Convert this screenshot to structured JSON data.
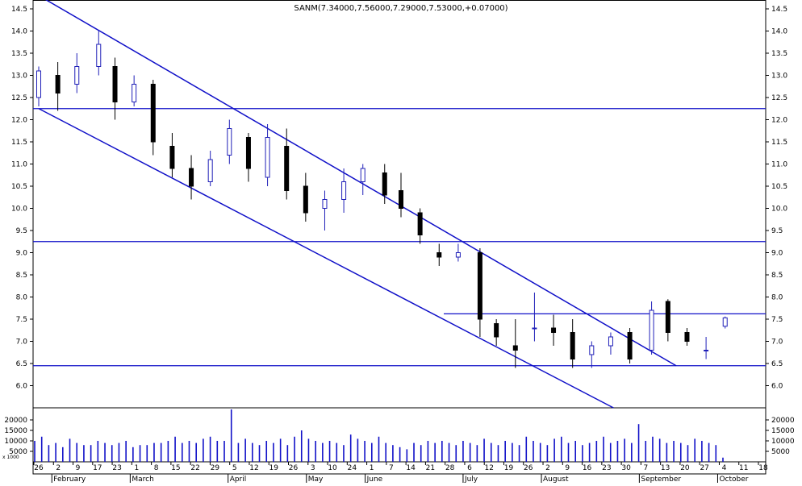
{
  "colors": {
    "up_candle": "#1f1fb8",
    "down_candle": "#000000",
    "trend_line": "#1010c8",
    "volume_bar": "#1010c8",
    "frame": "#000000"
  },
  "chart_data": [
    {
      "type": "candlestick",
      "title": "SANM(7.34000,7.56000,7.29000,7.53000,+0.07000)",
      "ylim": [
        5.5,
        14.7
      ],
      "y_ticks": [
        "14.5",
        "14.0",
        "13.5",
        "13.0",
        "12.5",
        "12.0",
        "11.5",
        "11.0",
        "10.5",
        "10.0",
        "9.5",
        "9.0",
        "8.5",
        "8.0",
        "7.5",
        "7.0",
        "6.5",
        "6.0"
      ],
      "horizontal_levels": [
        12.25,
        9.25,
        7.62,
        6.45
      ],
      "trend_lines": [
        {
          "from": [
            "Jan 26",
            14.8
          ],
          "to": [
            "Sep 16",
            6.45
          ]
        },
        {
          "from": [
            "Jan 26",
            12.25
          ],
          "to": [
            "Aug 24",
            5.5
          ]
        }
      ],
      "candles_estimated": [
        {
          "date": "Jan 26",
          "o": 12.5,
          "h": 13.2,
          "l": 12.3,
          "c": 13.1
        },
        {
          "date": "Feb 2",
          "o": 13.0,
          "h": 13.3,
          "l": 12.2,
          "c": 12.6
        },
        {
          "date": "Feb 9",
          "o": 12.8,
          "h": 13.5,
          "l": 12.6,
          "c": 13.2
        },
        {
          "date": "Feb 17",
          "o": 13.2,
          "h": 14.0,
          "l": 13.0,
          "c": 13.7
        },
        {
          "date": "Feb 23",
          "o": 13.2,
          "h": 13.4,
          "l": 12.0,
          "c": 12.4
        },
        {
          "date": "Mar 1",
          "o": 12.4,
          "h": 13.0,
          "l": 12.3,
          "c": 12.8
        },
        {
          "date": "Mar 8",
          "o": 12.8,
          "h": 12.9,
          "l": 11.2,
          "c": 11.5
        },
        {
          "date": "Mar 15",
          "o": 11.4,
          "h": 11.7,
          "l": 10.7,
          "c": 10.9
        },
        {
          "date": "Mar 22",
          "o": 10.9,
          "h": 11.2,
          "l": 10.2,
          "c": 10.5
        },
        {
          "date": "Mar 29",
          "o": 10.6,
          "h": 11.3,
          "l": 10.5,
          "c": 11.1
        },
        {
          "date": "Apr 5",
          "o": 11.2,
          "h": 12.0,
          "l": 11.0,
          "c": 11.8
        },
        {
          "date": "Apr 12",
          "o": 11.6,
          "h": 11.7,
          "l": 10.6,
          "c": 10.9
        },
        {
          "date": "Apr 19",
          "o": 10.7,
          "h": 11.9,
          "l": 10.5,
          "c": 11.6
        },
        {
          "date": "Apr 26",
          "o": 11.4,
          "h": 11.8,
          "l": 10.2,
          "c": 10.4
        },
        {
          "date": "May 3",
          "o": 10.5,
          "h": 10.8,
          "l": 9.7,
          "c": 9.9
        },
        {
          "date": "May 10",
          "o": 10.0,
          "h": 10.4,
          "l": 9.5,
          "c": 10.2
        },
        {
          "date": "May 17",
          "o": 10.2,
          "h": 10.9,
          "l": 9.9,
          "c": 10.6
        },
        {
          "date": "May 24",
          "o": 10.6,
          "h": 11.0,
          "l": 10.3,
          "c": 10.9
        },
        {
          "date": "Jun 1",
          "o": 10.8,
          "h": 11.0,
          "l": 10.1,
          "c": 10.3
        },
        {
          "date": "Jun 7",
          "o": 10.4,
          "h": 10.8,
          "l": 9.8,
          "c": 10.0
        },
        {
          "date": "Jun 14",
          "o": 9.9,
          "h": 10.0,
          "l": 9.2,
          "c": 9.4
        },
        {
          "date": "Jun 21",
          "o": 9.0,
          "h": 9.2,
          "l": 8.7,
          "c": 8.9
        },
        {
          "date": "Jun 28",
          "o": 8.9,
          "h": 9.2,
          "l": 8.8,
          "c": 9.0
        },
        {
          "date": "Jul 6",
          "o": 9.0,
          "h": 9.1,
          "l": 7.1,
          "c": 7.5
        },
        {
          "date": "Jul 12",
          "o": 7.4,
          "h": 7.5,
          "l": 6.9,
          "c": 7.1
        },
        {
          "date": "Jul 19",
          "o": 6.9,
          "h": 7.5,
          "l": 6.4,
          "c": 6.8
        },
        {
          "date": "Jul 26",
          "o": 7.3,
          "h": 8.1,
          "l": 7.0,
          "c": 7.3
        },
        {
          "date": "Aug 2",
          "o": 7.3,
          "h": 7.6,
          "l": 6.9,
          "c": 7.2
        },
        {
          "date": "Aug 9",
          "o": 7.2,
          "h": 7.5,
          "l": 6.4,
          "c": 6.6
        },
        {
          "date": "Aug 16",
          "o": 6.7,
          "h": 7.0,
          "l": 6.4,
          "c": 6.9
        },
        {
          "date": "Aug 23",
          "o": 6.9,
          "h": 7.2,
          "l": 6.7,
          "c": 7.1
        },
        {
          "date": "Aug 30",
          "o": 7.2,
          "h": 7.3,
          "l": 6.5,
          "c": 6.6
        },
        {
          "date": "Sep 7",
          "o": 6.8,
          "h": 7.9,
          "l": 6.7,
          "c": 7.7
        },
        {
          "date": "Sep 13",
          "o": 7.9,
          "h": 7.95,
          "l": 7.0,
          "c": 7.2
        },
        {
          "date": "Sep 20",
          "o": 7.2,
          "h": 7.3,
          "l": 6.9,
          "c": 7.0
        },
        {
          "date": "Sep 27",
          "o": 6.8,
          "h": 7.1,
          "l": 6.6,
          "c": 6.8
        },
        {
          "date": "Oct 4",
          "o": 7.34,
          "h": 7.56,
          "l": 7.29,
          "c": 7.53
        }
      ]
    },
    {
      "type": "bar",
      "title": "",
      "multiplier_label": "x 1000",
      "y_ticks": [
        "20000",
        "15000",
        "10000",
        "5000"
      ],
      "ylim": [
        0,
        25000
      ],
      "volume_estimated": [
        10000,
        12000,
        8000,
        9000,
        7000,
        11000,
        9000,
        8000,
        8000,
        10000,
        9000,
        8000,
        9000,
        10000,
        7000,
        8000,
        8000,
        9000,
        9000,
        10000,
        12000,
        9000,
        10000,
        9000,
        11000,
        12000,
        10000,
        10000,
        25000,
        9000,
        11000,
        9000,
        8000,
        10000,
        9000,
        11000,
        8000,
        12000,
        15000,
        11000,
        10000,
        9000,
        10000,
        9000,
        8000,
        13000,
        11000,
        10000,
        9000,
        12000,
        9000,
        8000,
        7000,
        6000,
        9000,
        8000,
        10000,
        9000,
        10000,
        9000,
        8000,
        10000,
        9000,
        8000,
        11000,
        9000,
        8000,
        10000,
        9000,
        8000,
        12000,
        10000,
        9000,
        8000,
        11000,
        12000,
        9000,
        10000,
        8000,
        9000,
        10000,
        12000,
        9000,
        10000,
        11000,
        9000,
        18000,
        10000,
        12000,
        11000,
        9000,
        10000,
        9000,
        8000,
        11000,
        10000,
        9000,
        8000,
        2000
      ]
    }
  ],
  "x_axis": {
    "day_ticks": [
      "26",
      "2",
      "9",
      "17",
      "23",
      "1",
      "8",
      "15",
      "22",
      "29",
      "5",
      "12",
      "19",
      "26",
      "3",
      "10",
      "24",
      "1",
      "7",
      "14",
      "21",
      "28",
      "6",
      "12",
      "19",
      "26",
      "2",
      "9",
      "16",
      "23",
      "30",
      "7",
      "13",
      "20",
      "27",
      "4",
      "11",
      "18"
    ],
    "months": [
      "February",
      "March",
      "April",
      "May",
      "June",
      "July",
      "August",
      "September",
      "October"
    ]
  }
}
